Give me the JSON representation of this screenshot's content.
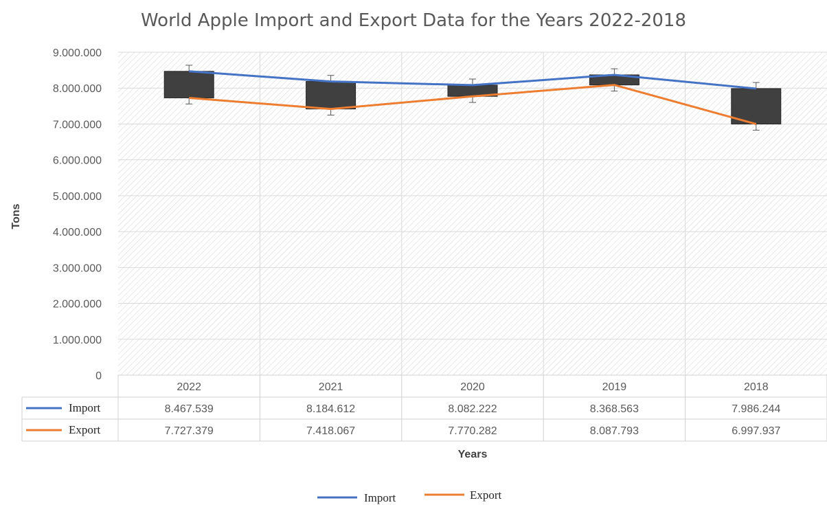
{
  "chart_data": {
    "type": "line",
    "title": "World Apple Import and Export Data for the Years 2022-2018",
    "xlabel": "Years",
    "ylabel": "Tons",
    "categories": [
      "2022",
      "2021",
      "2020",
      "2019",
      "2018"
    ],
    "series": [
      {
        "name": "Import",
        "color": "#4472C4",
        "values": [
          8467539,
          8184612,
          8082222,
          8368563,
          7986244
        ],
        "labels": [
          "8.467.539",
          "8.184.612",
          "8.082.222",
          "8.368.563",
          "7.986.244"
        ]
      },
      {
        "name": "Export",
        "color": "#ED7D31",
        "values": [
          7727379,
          7418067,
          7770282,
          8087793,
          6997937
        ],
        "labels": [
          "7.727.379",
          "7.418.067",
          "7.770.282",
          "8.087.793",
          "6.997.937"
        ]
      }
    ],
    "ylim": [
      0,
      9000000
    ],
    "yticks": [
      0,
      1000000,
      2000000,
      3000000,
      4000000,
      5000000,
      6000000,
      7000000,
      8000000,
      9000000
    ],
    "ytick_labels": [
      "0",
      "1.000.000",
      "2.000.000",
      "3.000.000",
      "4.000.000",
      "5.000.000",
      "6.000.000",
      "7.000.000",
      "8.000.000",
      "9.000.000"
    ],
    "up_down_bars": true,
    "up_down_bar_color": "#404040",
    "error_bars": true,
    "data_table": true,
    "grid": true,
    "legend": {
      "position": "bottom",
      "entries": [
        "Import",
        "Export"
      ]
    }
  }
}
